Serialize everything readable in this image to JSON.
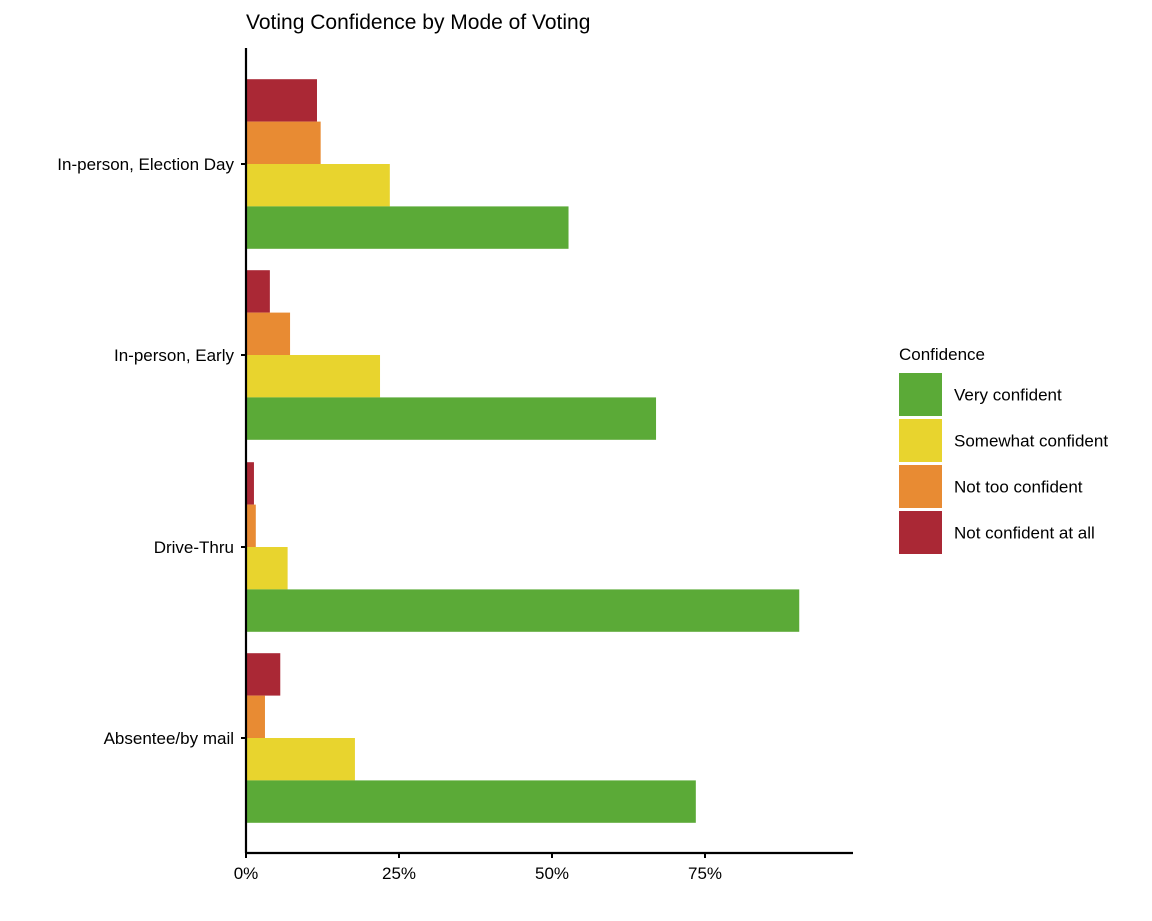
{
  "chart_data": {
    "type": "bar",
    "orientation": "horizontal",
    "title": "Voting Confidence by Mode of Voting",
    "xlabel": "",
    "ylabel": "",
    "categories": [
      "In-person, Election Day",
      "In-person, Early",
      "Drive-Thru",
      "Absentee/by mail"
    ],
    "series": [
      {
        "name": "Not confident at all",
        "color": "#AA2835",
        "values": [
          11.6,
          3.9,
          1.3,
          5.6
        ]
      },
      {
        "name": "Not too confident",
        "color": "#E88B33",
        "values": [
          12.2,
          7.2,
          1.6,
          3.1
        ]
      },
      {
        "name": "Somewhat confident",
        "color": "#E8D42E",
        "values": [
          23.5,
          21.9,
          6.8,
          17.8
        ]
      },
      {
        "name": "Very confident",
        "color": "#5BAA37",
        "values": [
          52.7,
          67.0,
          90.4,
          73.5
        ]
      }
    ],
    "xlim": [
      0,
      100
    ],
    "x_ticks": [
      0,
      25,
      50,
      75
    ],
    "x_tick_labels": [
      "0%",
      "25%",
      "50%",
      "75%"
    ],
    "grid": false,
    "legend": {
      "title": "Confidence",
      "placement": "right",
      "entries": [
        {
          "label": "Very confident",
          "color": "#5BAA37"
        },
        {
          "label": "Somewhat confident",
          "color": "#E8D42E"
        },
        {
          "label": "Not too confident",
          "color": "#E88B33"
        },
        {
          "label": "Not confident at all",
          "color": "#AA2835"
        }
      ]
    }
  }
}
